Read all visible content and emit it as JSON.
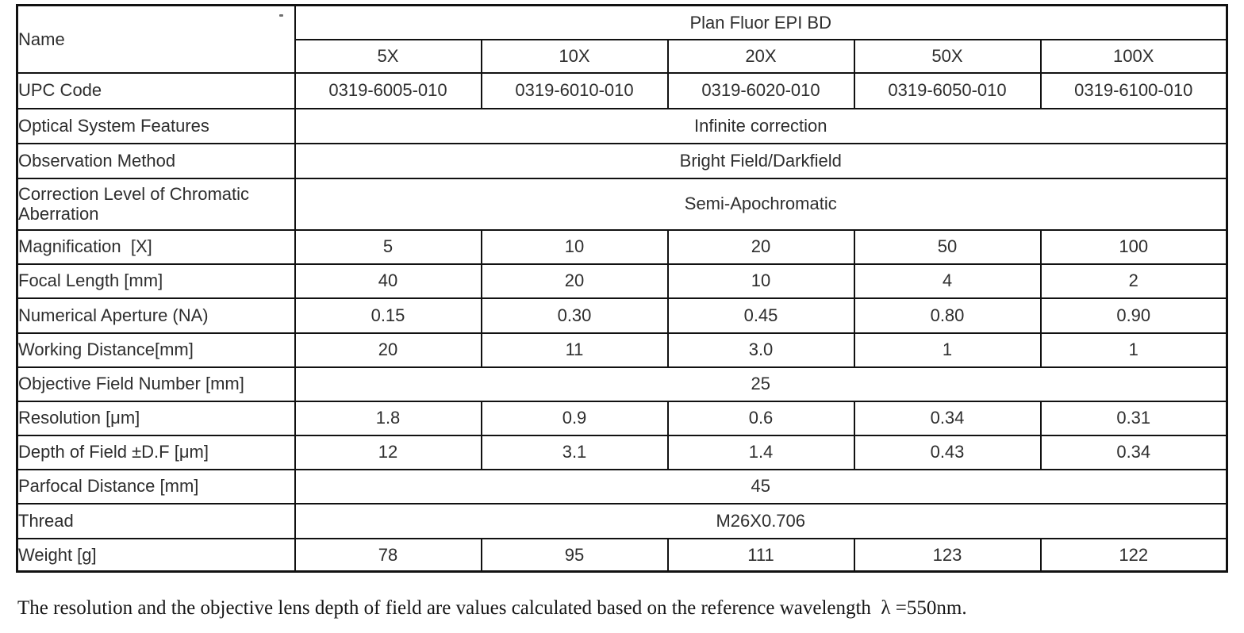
{
  "table": {
    "name_label": "Name",
    "series_title": "Plan Fluor EPI BD",
    "columns": [
      "5X",
      "10X",
      "20X",
      "50X",
      "100X"
    ],
    "rows": [
      {
        "label": "UPC Code",
        "values": [
          "0319-6005-010",
          "0319-6010-010",
          "0319-6020-010",
          "0319-6050-010",
          "0319-6100-010"
        ]
      },
      {
        "label": "Optical System Features",
        "merged": "Infinite correction"
      },
      {
        "label": "Observation Method",
        "merged": "Bright Field/Darkfield"
      },
      {
        "label": "Correction Level of Chromatic Aberration",
        "merged": "Semi-Apochromatic"
      },
      {
        "label": "Magnification  [X]",
        "values": [
          "5",
          "10",
          "20",
          "50",
          "100"
        ]
      },
      {
        "label": "Focal Length [mm]",
        "values": [
          "40",
          "20",
          "10",
          "4",
          "2"
        ]
      },
      {
        "label": "Numerical Aperture (NA)",
        "values": [
          "0.15",
          "0.30",
          "0.45",
          "0.80",
          "0.90"
        ]
      },
      {
        "label": "Working Distance[mm]",
        "values": [
          "20",
          "11",
          "3.0",
          "1",
          "1"
        ]
      },
      {
        "label": "Objective Field Number [mm]",
        "merged": "25"
      },
      {
        "label": "Resolution [μm]",
        "values": [
          "1.8",
          "0.9",
          "0.6",
          "0.34",
          "0.31"
        ]
      },
      {
        "label": "Depth of Field ±D.F [μm]",
        "values": [
          "12",
          "3.1",
          "1.4",
          "0.43",
          "0.34"
        ]
      },
      {
        "label": "Parfocal Distance [mm]",
        "merged": "45"
      },
      {
        "label": "Thread",
        "merged": "M26X0.706"
      },
      {
        "label": "Weight [g]",
        "values": [
          "78",
          "95",
          "111",
          "123",
          "122"
        ]
      }
    ]
  },
  "footnote": "The resolution and the objective lens depth of field are values calculated based on the reference wavelength  λ =550nm.",
  "colors": {
    "border": "#111111",
    "label_text": "#414141",
    "value_text": "#2b2b2b",
    "background": "#ffffff"
  }
}
